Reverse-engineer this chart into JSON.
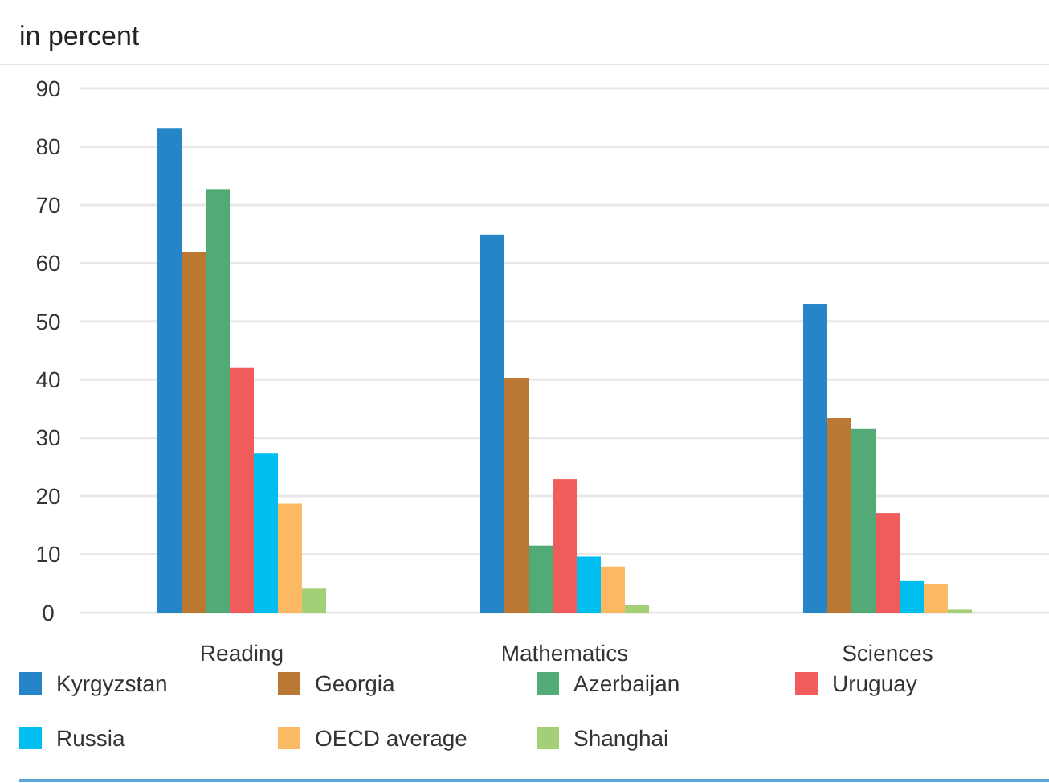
{
  "chart_data": {
    "type": "bar",
    "title": "in percent",
    "categories": [
      "Reading",
      "Mathematics",
      "Sciences"
    ],
    "series": [
      {
        "name": "Kyrgyzstan",
        "color": "#2585c7",
        "values": [
          83.2,
          64.9,
          53.0
        ]
      },
      {
        "name": "Georgia",
        "color": "#bb7833",
        "values": [
          61.9,
          40.3,
          33.4
        ]
      },
      {
        "name": "Azerbaijan",
        "color": "#52ab77",
        "values": [
          72.7,
          11.5,
          31.5
        ]
      },
      {
        "name": "Uruguay",
        "color": "#f05c5c",
        "values": [
          42.0,
          22.9,
          17.1
        ]
      },
      {
        "name": "Russia",
        "color": "#00bff0",
        "values": [
          27.3,
          9.6,
          5.4
        ]
      },
      {
        "name": "OECD average",
        "color": "#fcb964",
        "values": [
          18.7,
          7.9,
          4.9
        ]
      },
      {
        "name": "Shanghai",
        "color": "#a3d077",
        "values": [
          4.1,
          1.3,
          0.5
        ]
      }
    ],
    "ylim": [
      0,
      90
    ],
    "yticks": [
      0,
      10,
      20,
      30,
      40,
      50,
      60,
      70,
      80,
      90
    ],
    "grid": "y",
    "legend": "bottom"
  }
}
